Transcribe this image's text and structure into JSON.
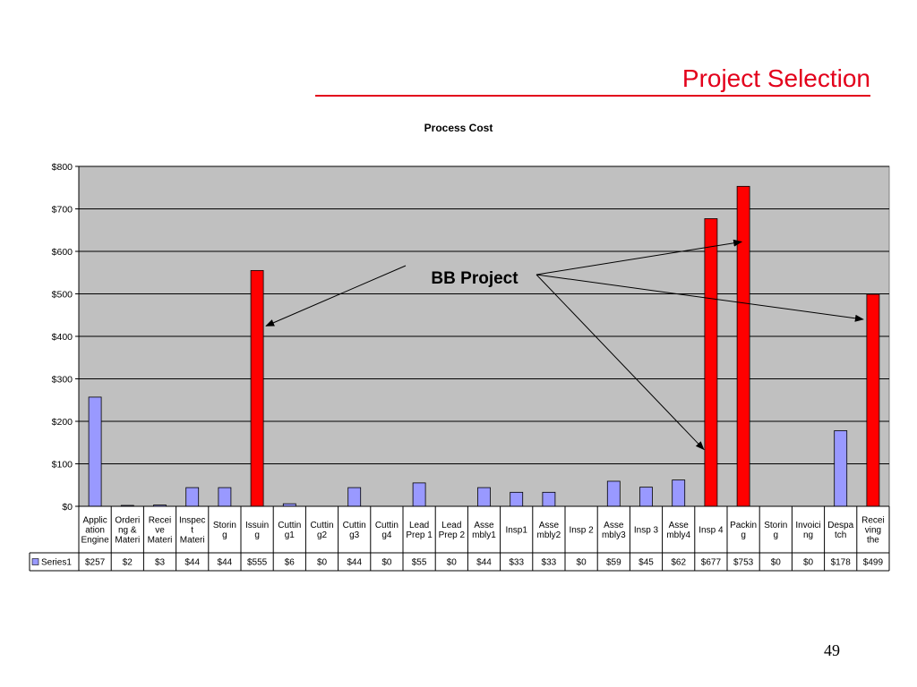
{
  "slide": {
    "title": "Project Selection",
    "page_number": "49"
  },
  "colors": {
    "title": "#e3001b",
    "plot_background": "#c0c0c0",
    "bar_default": "#9999ff",
    "bar_highlight": "#ff0000"
  },
  "chart_data": {
    "type": "bar",
    "title": "Process Cost",
    "xlabel": "",
    "ylabel": "",
    "ylim": [
      0,
      800
    ],
    "yticks": [
      "$0",
      "$100",
      "$200",
      "$300",
      "$400",
      "$500",
      "$600",
      "$700",
      "$800"
    ],
    "grid": true,
    "legend": "data-table-left",
    "categories": [
      [
        "Applic",
        "ation",
        "Engine"
      ],
      [
        "Orderi",
        "ng &",
        "Materi"
      ],
      [
        "Recei",
        "ve",
        "Materi"
      ],
      [
        "Inspec",
        "t",
        "Materi"
      ],
      [
        "Storin",
        "g"
      ],
      [
        "Issuin",
        "g"
      ],
      [
        "Cuttin",
        "g1"
      ],
      [
        "Cuttin",
        "g2"
      ],
      [
        "Cuttin",
        "g3"
      ],
      [
        "Cuttin",
        "g4"
      ],
      [
        "Lead",
        "Prep 1"
      ],
      [
        "Lead",
        "Prep 2"
      ],
      [
        "Asse",
        "mbly1"
      ],
      [
        "Insp1"
      ],
      [
        "Asse",
        "mbly2"
      ],
      [
        "Insp 2"
      ],
      [
        "Asse",
        "mbly3"
      ],
      [
        "Insp 3"
      ],
      [
        "Asse",
        "mbly4"
      ],
      [
        "Insp 4"
      ],
      [
        "Packin",
        "g"
      ],
      [
        "Storin",
        "g"
      ],
      [
        "Invoici",
        "ng"
      ],
      [
        "Despa",
        "tch"
      ],
      [
        "Recei",
        "ving",
        "the"
      ]
    ],
    "series": [
      {
        "name": "Series1",
        "values": [
          257,
          2,
          3,
          44,
          44,
          555,
          6,
          0,
          44,
          0,
          55,
          0,
          44,
          33,
          33,
          0,
          59,
          45,
          62,
          677,
          753,
          0,
          0,
          178,
          499
        ],
        "labels": [
          "$257",
          "$2",
          "$3",
          "$44",
          "$44",
          "$555",
          "$6",
          "$0",
          "$44",
          "$0",
          "$55",
          "$0",
          "$44",
          "$33",
          "$33",
          "$0",
          "$59",
          "$45",
          "$62",
          "$677",
          "$753",
          "$0",
          "$0",
          "$178",
          "$499"
        ]
      }
    ],
    "highlighted_indices": [
      5,
      19,
      20,
      24
    ],
    "annotation": {
      "text": "BB Project",
      "arrows_to": [
        5,
        19,
        20,
        24
      ]
    }
  }
}
